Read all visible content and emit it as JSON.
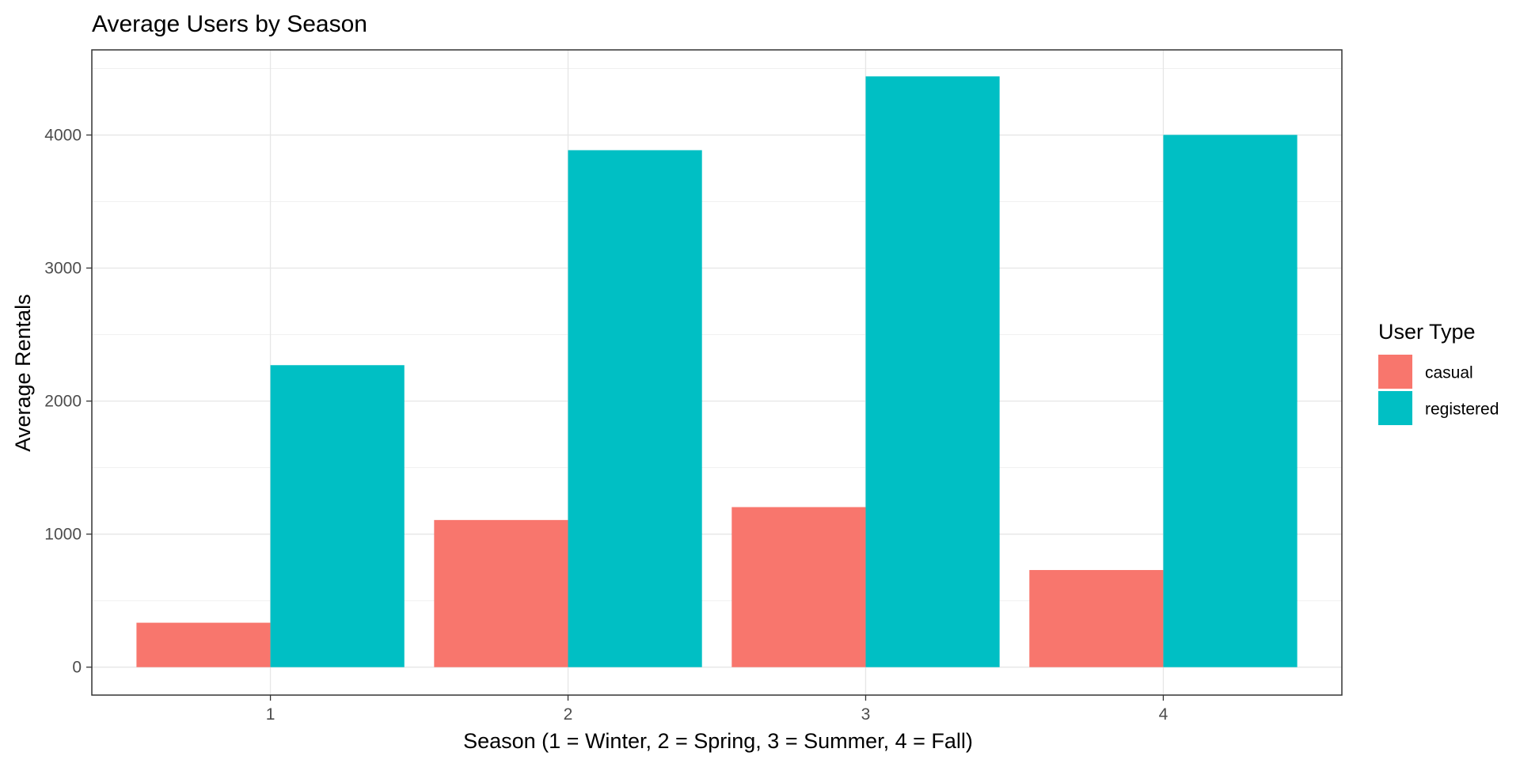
{
  "chart_data": {
    "type": "bar",
    "title": "Average Users by Season",
    "xlabel": "Season (1 = Winter, 2 = Spring, 3 = Summer, 4 = Fall)",
    "ylabel": "Average Rentals",
    "categories": [
      "1",
      "2",
      "3",
      "4"
    ],
    "series": [
      {
        "name": "casual",
        "color": "#F8766D",
        "values": [
          334,
          1106,
          1203,
          730
        ]
      },
      {
        "name": "registered",
        "color": "#00BFC4",
        "values": [
          2270,
          3886,
          4441,
          4001
        ]
      }
    ],
    "ylim": [
      -210,
      4640
    ],
    "yticks": [
      0,
      1000,
      2000,
      3000,
      4000
    ],
    "grid": true,
    "legend": {
      "title": "User Type",
      "position": "right"
    }
  }
}
